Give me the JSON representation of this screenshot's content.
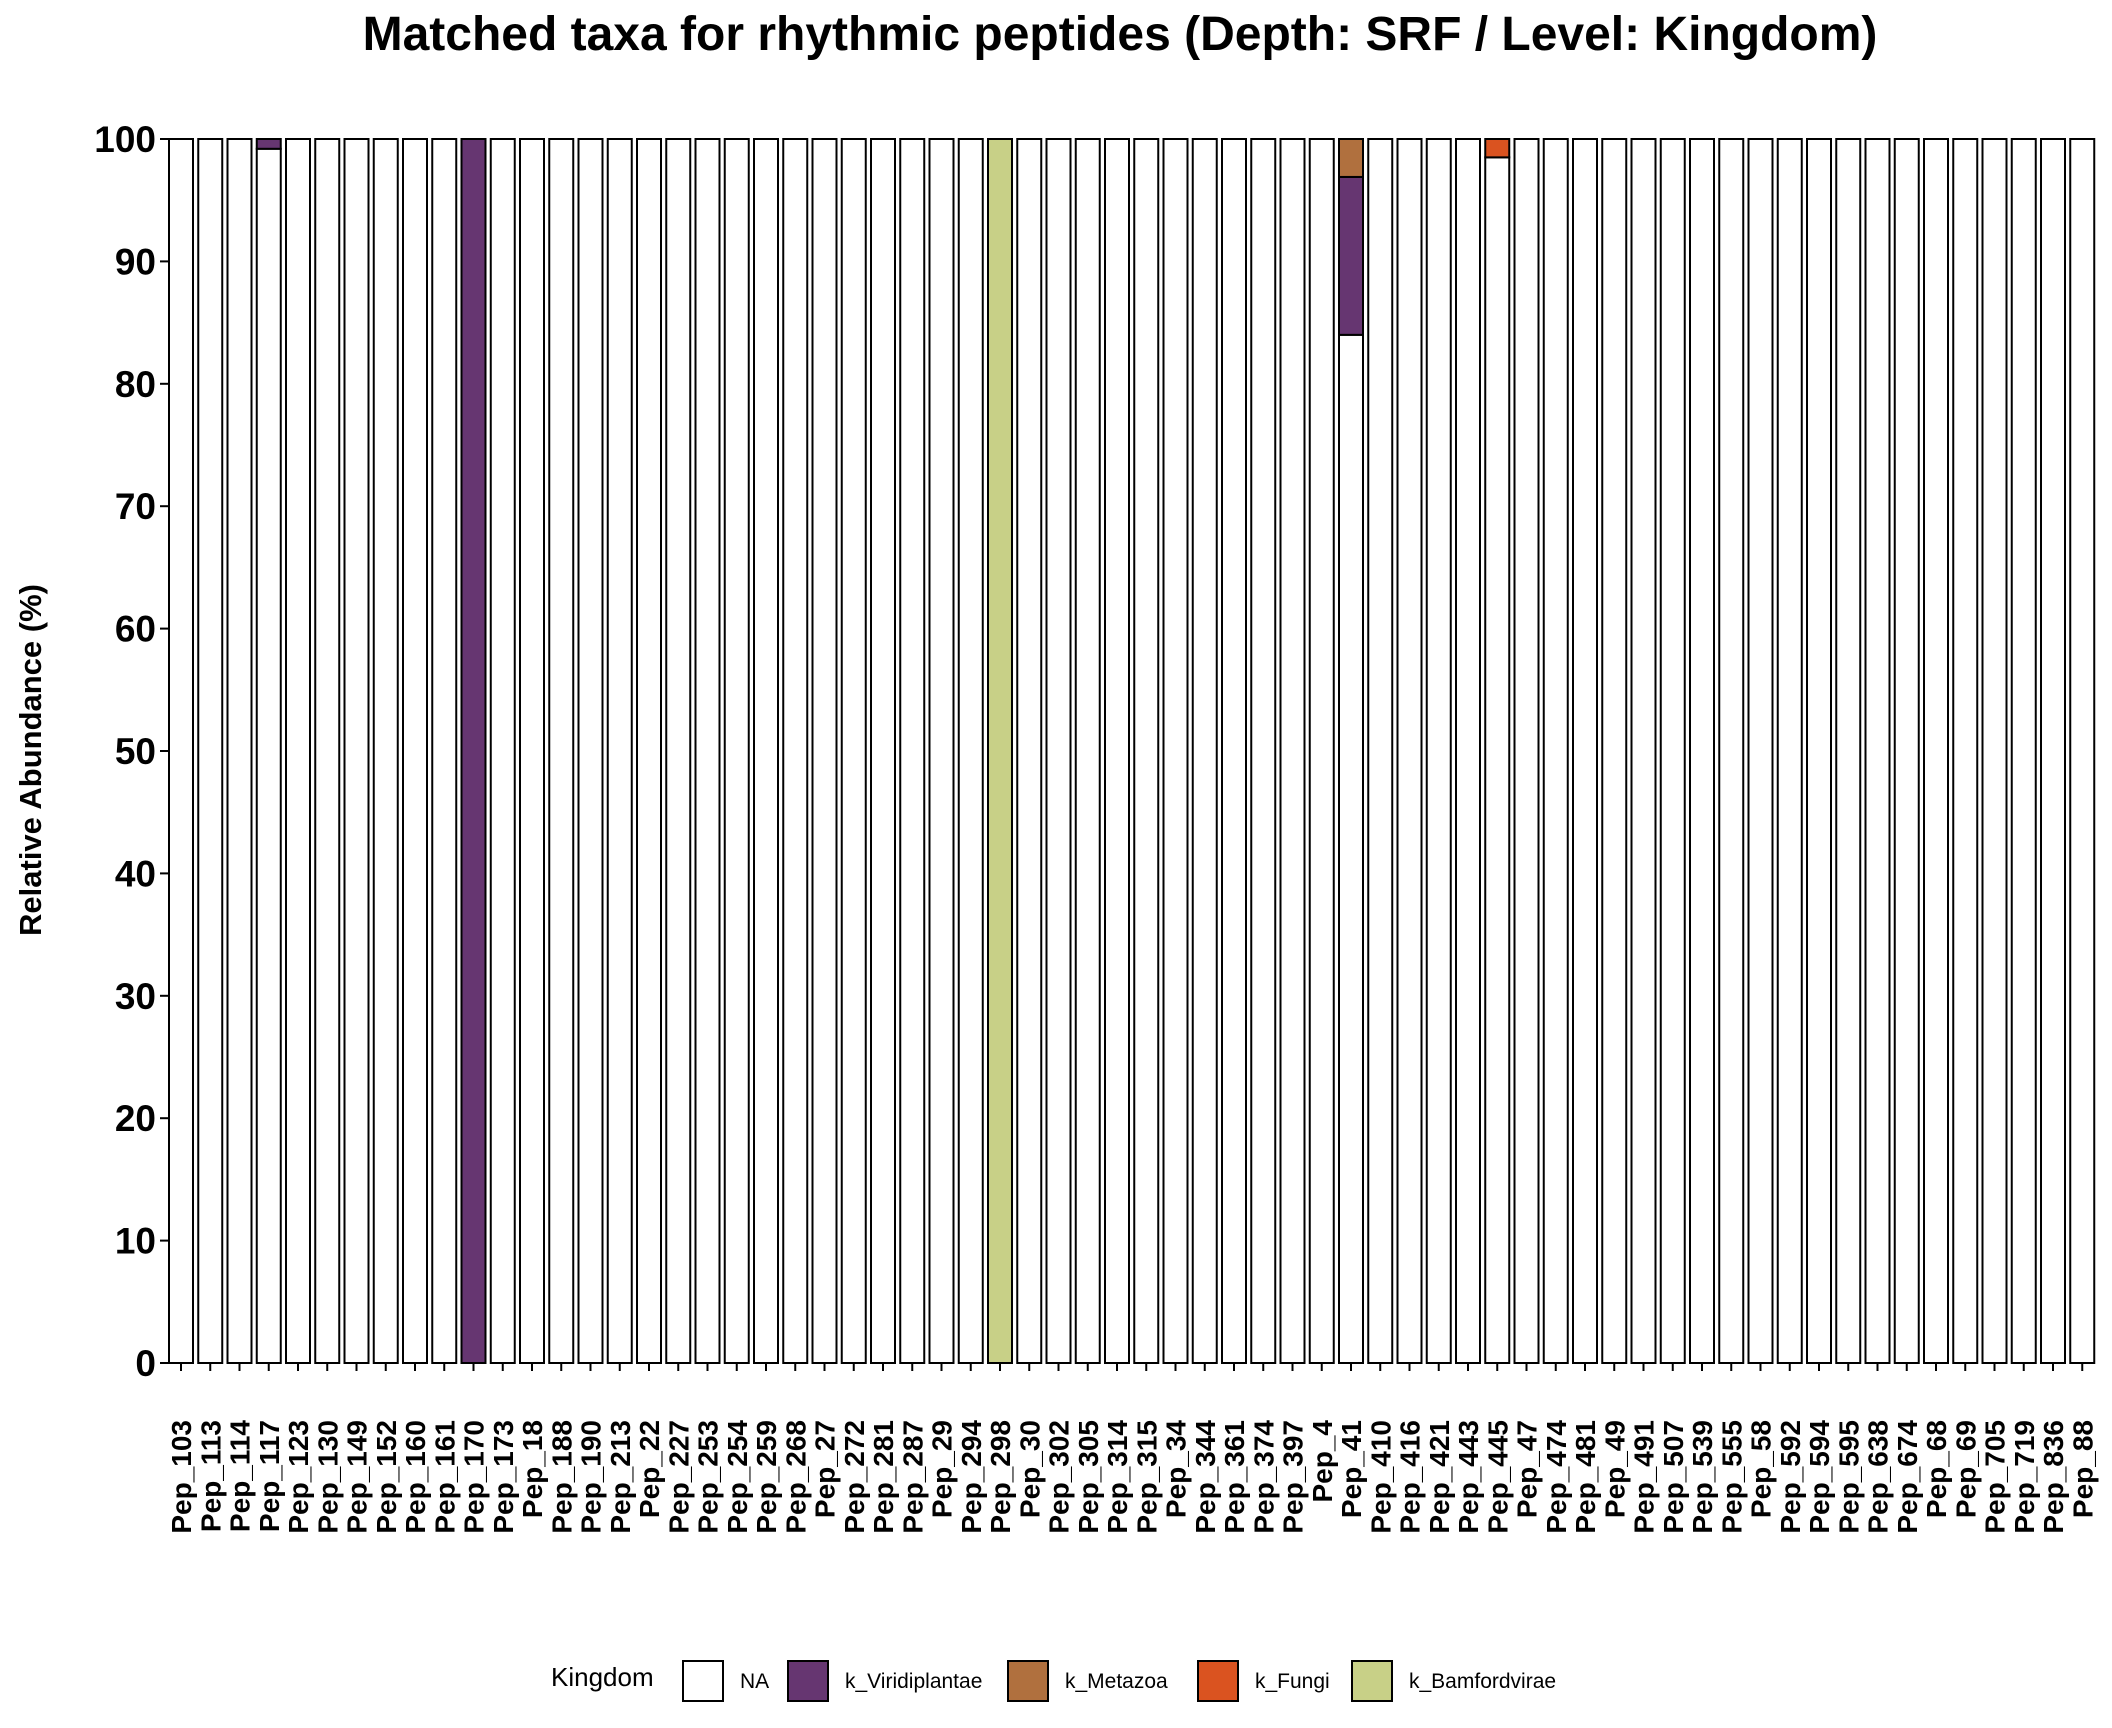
{
  "chart_data": {
    "type": "bar",
    "stacked": true,
    "title": "Matched taxa for rhythmic peptides (Depth: SRF / Level: Kingdom)",
    "xlabel": "",
    "ylabel": "Relative Abundance (%)",
    "ylim": [
      0,
      100
    ],
    "yticks": [
      0,
      10,
      20,
      30,
      40,
      50,
      60,
      70,
      80,
      90,
      100
    ],
    "grid": false,
    "legend_position": "bottom",
    "legend_title": "Kingdom",
    "categories": [
      "Pep_103",
      "Pep_113",
      "Pep_114",
      "Pep_117",
      "Pep_123",
      "Pep_130",
      "Pep_149",
      "Pep_152",
      "Pep_160",
      "Pep_161",
      "Pep_170",
      "Pep_173",
      "Pep_18",
      "Pep_188",
      "Pep_190",
      "Pep_213",
      "Pep_22",
      "Pep_227",
      "Pep_253",
      "Pep_254",
      "Pep_259",
      "Pep_268",
      "Pep_27",
      "Pep_272",
      "Pep_281",
      "Pep_287",
      "Pep_29",
      "Pep_294",
      "Pep_298",
      "Pep_30",
      "Pep_302",
      "Pep_305",
      "Pep_314",
      "Pep_315",
      "Pep_34",
      "Pep_344",
      "Pep_361",
      "Pep_374",
      "Pep_397",
      "Pep_4",
      "Pep_41",
      "Pep_410",
      "Pep_416",
      "Pep_421",
      "Pep_443",
      "Pep_445",
      "Pep_47",
      "Pep_474",
      "Pep_481",
      "Pep_49",
      "Pep_491",
      "Pep_507",
      "Pep_539",
      "Pep_555",
      "Pep_58",
      "Pep_592",
      "Pep_594",
      "Pep_595",
      "Pep_638",
      "Pep_674",
      "Pep_68",
      "Pep_69",
      "Pep_705",
      "Pep_719",
      "Pep_836",
      "Pep_88"
    ],
    "series": [
      {
        "name": "NA",
        "color": "#ffffff",
        "values": [
          100,
          100,
          100,
          99.2,
          100,
          100,
          100,
          100,
          100,
          100,
          0,
          100,
          100,
          100,
          100,
          100,
          100,
          100,
          100,
          100,
          100,
          100,
          100,
          100,
          100,
          100,
          100,
          100,
          0,
          100,
          100,
          100,
          100,
          100,
          100,
          100,
          100,
          100,
          100,
          100,
          84,
          100,
          100,
          100,
          100,
          98.5,
          100,
          100,
          100,
          100,
          100,
          100,
          100,
          100,
          100,
          100,
          100,
          100,
          100,
          100,
          100,
          100,
          100,
          100,
          100,
          100
        ]
      },
      {
        "name": "k_Viridiplantae",
        "color": "#663671",
        "values": [
          0,
          0,
          0,
          0.8,
          0,
          0,
          0,
          0,
          0,
          0,
          100,
          0,
          0,
          0,
          0,
          0,
          0,
          0,
          0,
          0,
          0,
          0,
          0,
          0,
          0,
          0,
          0,
          0,
          0,
          0,
          0,
          0,
          0,
          0,
          0,
          0,
          0,
          0,
          0,
          0,
          12.9,
          0,
          0,
          0,
          0,
          0,
          0,
          0,
          0,
          0,
          0,
          0,
          0,
          0,
          0,
          0,
          0,
          0,
          0,
          0,
          0,
          0,
          0,
          0,
          0,
          0
        ]
      },
      {
        "name": "k_Metazoa",
        "color": "#B0703E",
        "values": [
          0,
          0,
          0,
          0,
          0,
          0,
          0,
          0,
          0,
          0,
          0,
          0,
          0,
          0,
          0,
          0,
          0,
          0,
          0,
          0,
          0,
          0,
          0,
          0,
          0,
          0,
          0,
          0,
          0,
          0,
          0,
          0,
          0,
          0,
          0,
          0,
          0,
          0,
          0,
          0,
          3.1,
          0,
          0,
          0,
          0,
          0,
          0,
          0,
          0,
          0,
          0,
          0,
          0,
          0,
          0,
          0,
          0,
          0,
          0,
          0,
          0,
          0,
          0,
          0,
          0,
          0
        ]
      },
      {
        "name": "k_Fungi",
        "color": "#DA5320",
        "values": [
          0,
          0,
          0,
          0,
          0,
          0,
          0,
          0,
          0,
          0,
          0,
          0,
          0,
          0,
          0,
          0,
          0,
          0,
          0,
          0,
          0,
          0,
          0,
          0,
          0,
          0,
          0,
          0,
          0,
          0,
          0,
          0,
          0,
          0,
          0,
          0,
          0,
          0,
          0,
          0,
          0,
          0,
          0,
          0,
          0,
          1.5,
          0,
          0,
          0,
          0,
          0,
          0,
          0,
          0,
          0,
          0,
          0,
          0,
          0,
          0,
          0,
          0,
          0,
          0,
          0,
          0
        ]
      },
      {
        "name": "k_Bamfordvirae",
        "color": "#C8D087",
        "values": [
          0,
          0,
          0,
          0,
          0,
          0,
          0,
          0,
          0,
          0,
          0,
          0,
          0,
          0,
          0,
          0,
          0,
          0,
          0,
          0,
          0,
          0,
          0,
          0,
          0,
          0,
          0,
          0,
          100,
          0,
          0,
          0,
          0,
          0,
          0,
          0,
          0,
          0,
          0,
          0,
          0,
          0,
          0,
          0,
          0,
          0,
          0,
          0,
          0,
          0,
          0,
          0,
          0,
          0,
          0,
          0,
          0,
          0,
          0,
          0,
          0,
          0,
          0,
          0,
          0,
          0
        ]
      }
    ]
  }
}
